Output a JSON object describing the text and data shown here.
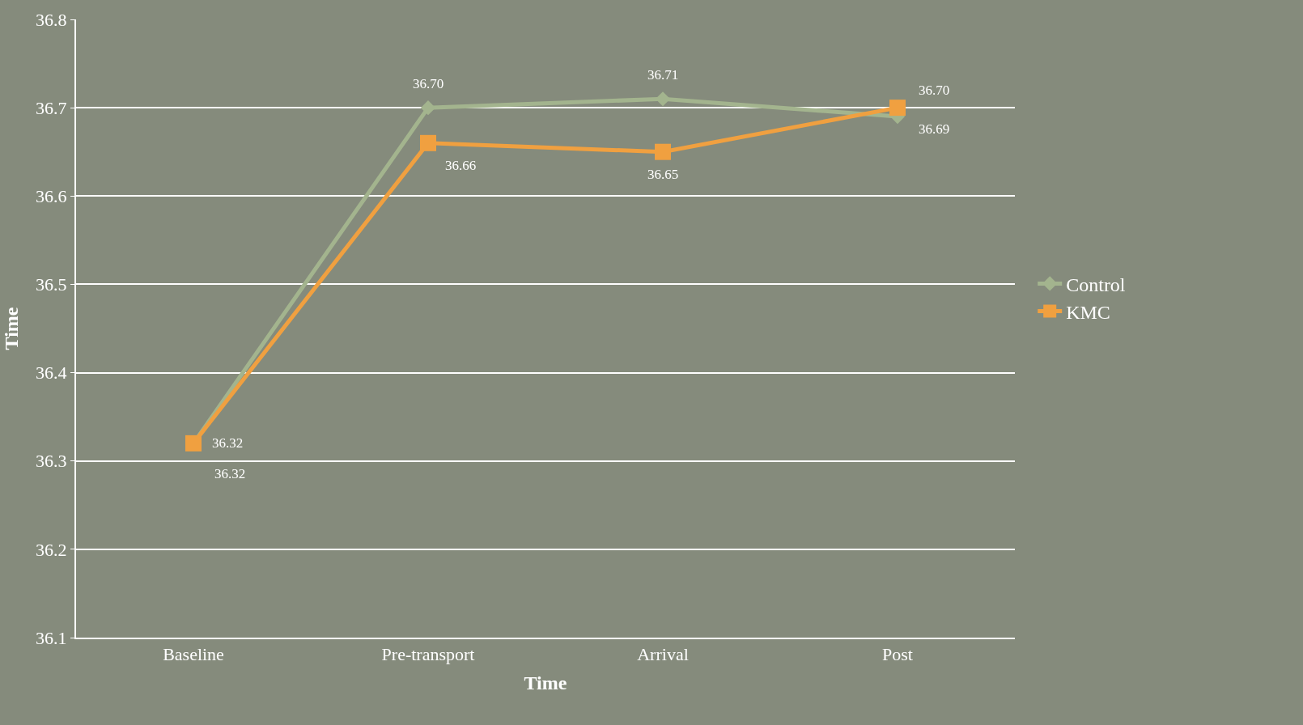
{
  "chart_data": {
    "type": "line",
    "xlabel": "Time",
    "ylabel": "Time",
    "categories": [
      "Baseline",
      "Pre-transport",
      "Arrival",
      "Post"
    ],
    "series": [
      {
        "name": "Control",
        "color": "#a3b48e",
        "marker": "diamond",
        "values": [
          36.32,
          36.7,
          36.71,
          36.69
        ],
        "value_labels": [
          "36.32",
          "36.70",
          "36.71",
          "36.69"
        ]
      },
      {
        "name": "KMC",
        "color": "#f0a040",
        "marker": "square",
        "values": [
          36.32,
          36.66,
          36.65,
          36.7
        ],
        "value_labels": [
          "36.32",
          "36.66",
          "36.65",
          "36.70"
        ]
      }
    ],
    "ylim": [
      36.1,
      36.8
    ],
    "yticks": [
      36.1,
      36.2,
      36.3,
      36.4,
      36.5,
      36.6,
      36.7,
      36.8
    ],
    "grid": "y",
    "legend": "right",
    "line_style": "solid"
  }
}
